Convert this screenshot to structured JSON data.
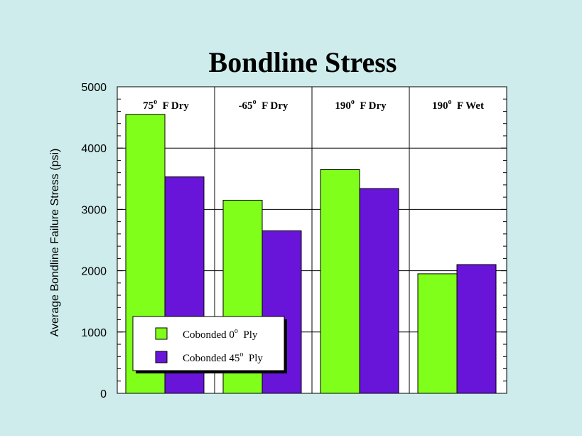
{
  "chart_data": {
    "type": "bar",
    "title": "Bondline Stress",
    "ylabel": "Average Bondline Failure Stress (psi)",
    "xlabel": "",
    "ylim": [
      0,
      5000
    ],
    "yticks": [
      0,
      1000,
      2000,
      3000,
      4000,
      5000
    ],
    "grid": true,
    "legend_position": "bottom-left",
    "categories": [
      {
        "label": "75",
        "suffix": "F Dry"
      },
      {
        "label": "-65",
        "suffix": "F Dry"
      },
      {
        "label": "190",
        "suffix": "F Dry"
      },
      {
        "label": "190",
        "suffix": "F Wet"
      }
    ],
    "degree_symbol": "o",
    "series": [
      {
        "name": "Cobonded 0",
        "name_suffix": "Ply",
        "color": "#80ff1a",
        "values": [
          4550,
          3150,
          3650,
          1950
        ]
      },
      {
        "name": "Cobonded 45",
        "name_suffix": "Ply",
        "color": "#6814d9",
        "values": [
          3530,
          2650,
          3340,
          2100
        ]
      }
    ]
  },
  "colors": {
    "background": "#cdeceb",
    "plot_background": "#ffffff",
    "axis": "#000000"
  }
}
